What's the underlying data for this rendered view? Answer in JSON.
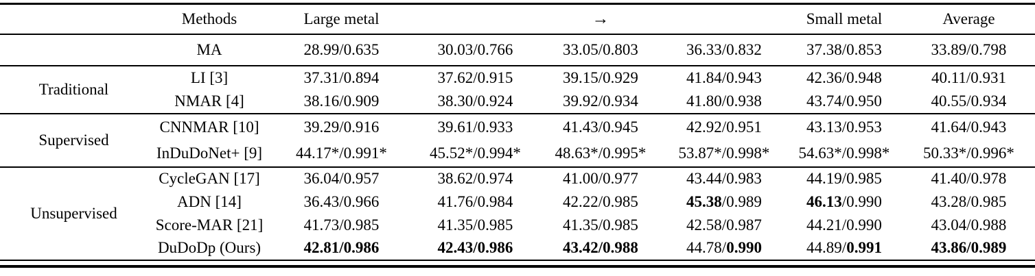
{
  "colors": {
    "text": "#000000",
    "background": "#ffffff",
    "rule": "#000000"
  },
  "header": {
    "columns": [
      "",
      "Methods",
      "Large metal",
      "",
      "→",
      "",
      "Small metal",
      "Average"
    ]
  },
  "table": {
    "groups": [
      {
        "label": "",
        "rows": [
          {
            "method": "MA",
            "values": [
              "28.99/0.635",
              "30.03/0.766",
              "33.05/0.803",
              "36.33/0.832",
              "37.38/0.853",
              "33.89/0.798"
            ]
          }
        ]
      },
      {
        "label": "Traditional",
        "rows": [
          {
            "method": "LI [3]",
            "values": [
              "37.31/0.894",
              "37.62/0.915",
              "39.15/0.929",
              "41.84/0.943",
              "42.36/0.948",
              "40.11/0.931"
            ]
          },
          {
            "method": "NMAR [4]",
            "values": [
              "38.16/0.909",
              "38.30/0.924",
              "39.92/0.934",
              "41.80/0.938",
              "43.74/0.950",
              "40.55/0.934"
            ]
          }
        ]
      },
      {
        "label": "Supervised",
        "rows": [
          {
            "method": "CNNMAR [10]",
            "values": [
              "39.29/0.916",
              "39.61/0.933",
              "41.43/0.945",
              "42.92/0.951",
              "43.13/0.953",
              "41.64/0.943"
            ]
          },
          {
            "method": "InDuDoNet+ [9]",
            "values": [
              "44.17*/0.991*",
              "45.52*/0.994*",
              "48.63*/0.995*",
              "53.87*/0.998*",
              "54.63*/0.998*",
              "50.33*/0.996*"
            ]
          }
        ]
      },
      {
        "label": "Unsupervised",
        "rows": [
          {
            "method": "CycleGAN [17]",
            "values": [
              "36.04/0.957",
              "38.62/0.974",
              "41.00/0.977",
              "43.44/0.983",
              "44.19/0.985",
              "41.40/0.978"
            ]
          },
          {
            "method": "ADN [14]",
            "values": [
              "36.43/0.966",
              "41.76/0.984",
              "42.22/0.985",
              "**45.38**/0.989",
              "**46.13**/0.990",
              "43.28/0.985"
            ]
          },
          {
            "method": "Score-MAR [21]",
            "values": [
              "41.73/0.985",
              "41.35/0.985",
              "41.35/0.985",
              "42.58/0.987",
              "44.21/0.990",
              "43.04/0.988"
            ]
          },
          {
            "method": "DuDoDp (Ours)",
            "values": [
              "**42.81/0.986**",
              "**42.43/0.986**",
              "**43.42/0.988**",
              "44.78/**0.990**",
              "44.89/**0.991**",
              "**43.86/0.989**"
            ]
          }
        ]
      }
    ]
  }
}
